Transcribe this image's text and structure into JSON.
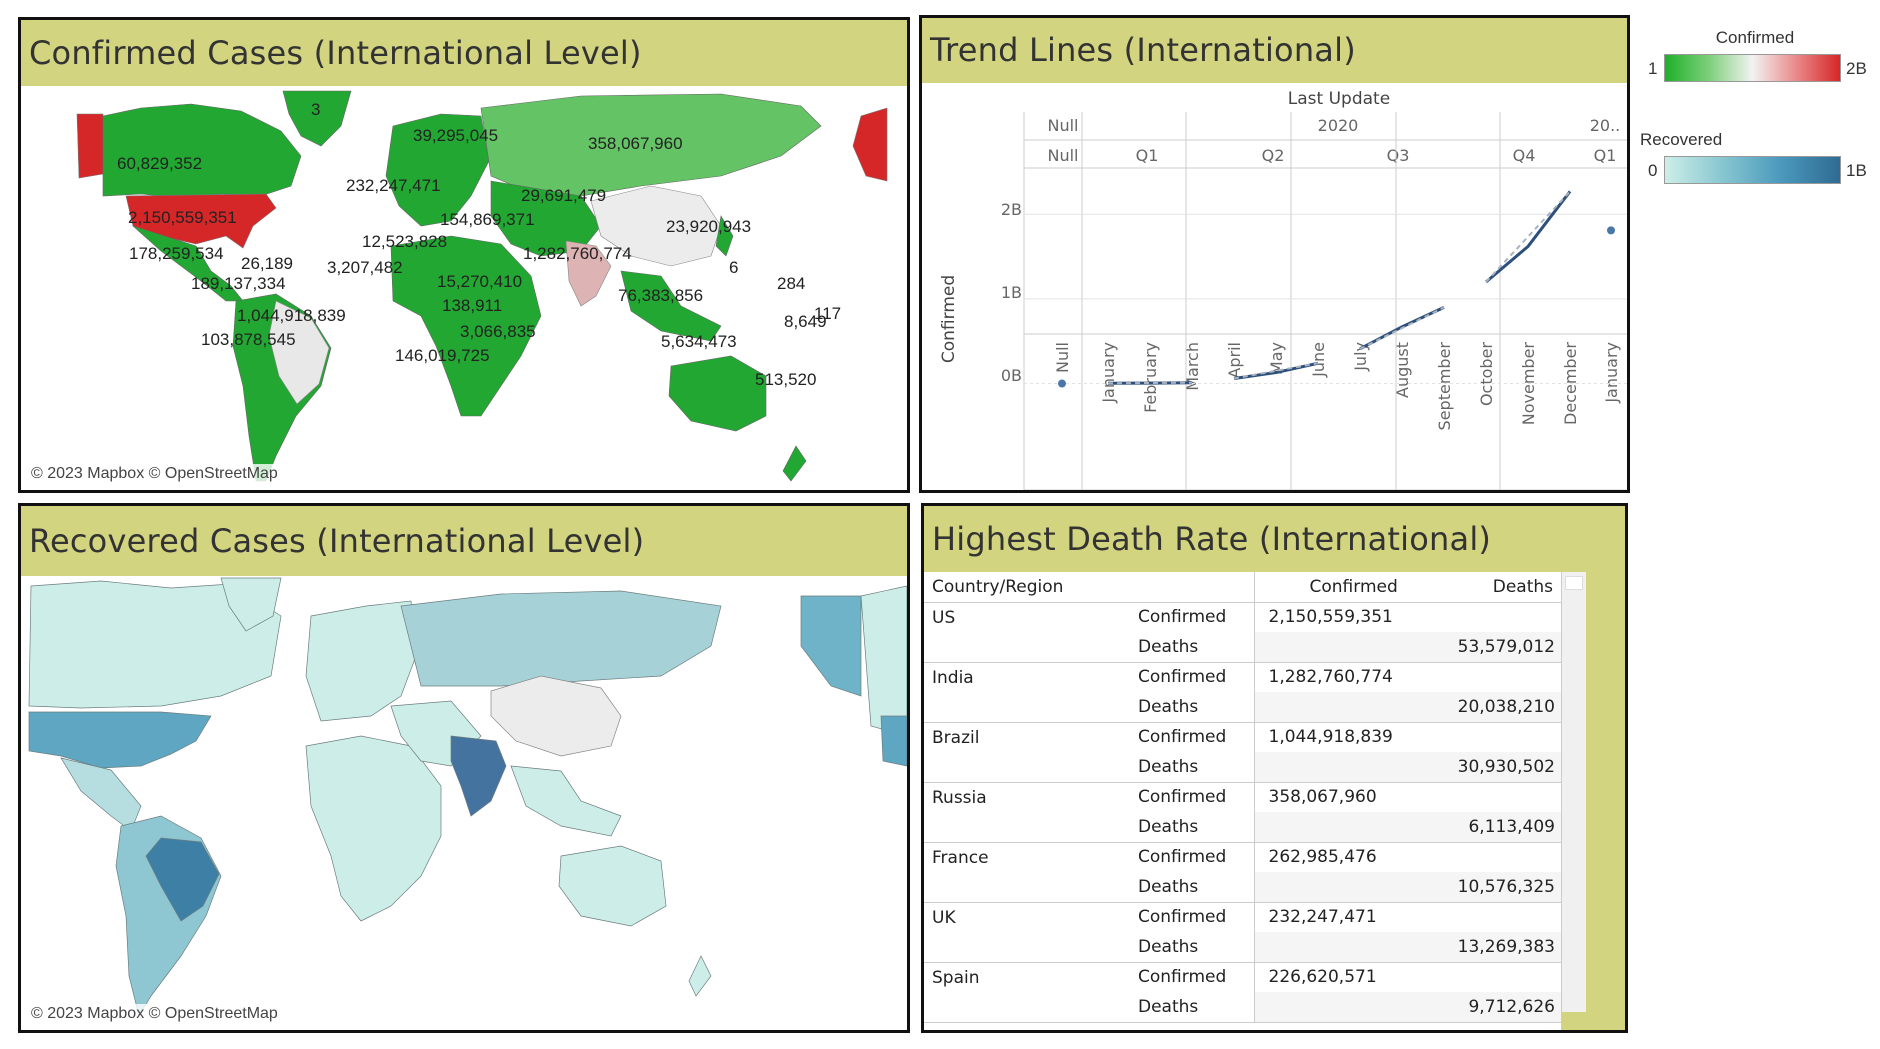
{
  "confirmed_map": {
    "title": "Confirmed Cases (International Level)",
    "credit": "© 2023 Mapbox © OpenStreetMap",
    "labels": [
      "3",
      "39,295,045",
      "358,067,960",
      "60,829,352",
      "232,247,471",
      "29,691,479",
      "2,150,559,351",
      "154,869,371",
      "23,920,943",
      "12,523,828",
      "1,282,760,774",
      "178,259,534",
      "26,189",
      "3,207,482",
      "6",
      "189,137,334",
      "15,270,410",
      "284",
      "76,383,856",
      "138,911",
      "1,044,918,839",
      "117",
      "8,649",
      "103,878,545",
      "3,066,835",
      "5,634,473",
      "146,019,725",
      "513,520"
    ]
  },
  "trend": {
    "title": "Trend Lines (International)",
    "column_header": "Last Update",
    "years": [
      "Null",
      "2020",
      "20.."
    ],
    "quarters": [
      "Null",
      "Q1",
      "Q2",
      "Q3",
      "Q4",
      "Q1"
    ],
    "months": [
      "Null",
      "January",
      "February",
      "March",
      "April",
      "May",
      "June",
      "July",
      "August",
      "September",
      "October",
      "November",
      "December",
      "January"
    ],
    "ylabel": "Confirmed",
    "yticks": [
      "2B",
      "1B",
      "0B"
    ]
  },
  "chart_data": {
    "type": "line",
    "title": "Trend Lines (International)",
    "xlabel": "Last Update",
    "ylabel": "Confirmed",
    "x": [
      "Null",
      "January",
      "February",
      "March",
      "April",
      "May",
      "June",
      "July",
      "August",
      "September",
      "October",
      "November",
      "December",
      "January"
    ],
    "series": [
      {
        "values": [
          0,
          0.003,
          0.005,
          0.01,
          0.06,
          0.13,
          0.24,
          0.41,
          0.67,
          0.9,
          1.2,
          1.62,
          2.27,
          1.81
        ]
      }
    ],
    "ylim": [
      -0.1,
      2.5
    ]
  },
  "legend": {
    "confirmed": {
      "title": "Confirmed",
      "min": "1",
      "max": "2B",
      "colors": [
        "#1fb02a",
        "#f2f2f2",
        "#d62728"
      ]
    },
    "recovered": {
      "title": "Recovered",
      "min": "0",
      "max": "1B",
      "colors": [
        "#cdeee8",
        "#2f6b92"
      ]
    }
  },
  "recovered_map": {
    "title": "Recovered Cases (International Level)",
    "credit": "© 2023 Mapbox © OpenStreetMap"
  },
  "death": {
    "title": "Highest Death Rate (International)",
    "headers": {
      "country": "Country/Region",
      "confirmed": "Confirmed",
      "deaths": "Deaths"
    },
    "rows": [
      {
        "country": "US",
        "measure_confirmed": "Confirmed",
        "confirmed": "2,150,559,351",
        "measure_deaths": "Deaths",
        "deaths": "53,579,012"
      },
      {
        "country": "India",
        "measure_confirmed": "Confirmed",
        "confirmed": "1,282,760,774",
        "measure_deaths": "Deaths",
        "deaths": "20,038,210"
      },
      {
        "country": "Brazil",
        "measure_confirmed": "Confirmed",
        "confirmed": "1,044,918,839",
        "measure_deaths": "Deaths",
        "deaths": "30,930,502"
      },
      {
        "country": "Russia",
        "measure_confirmed": "Confirmed",
        "confirmed": "358,067,960",
        "measure_deaths": "Deaths",
        "deaths": "6,113,409"
      },
      {
        "country": "France",
        "measure_confirmed": "Confirmed",
        "confirmed": "262,985,476",
        "measure_deaths": "Deaths",
        "deaths": "10,576,325"
      },
      {
        "country": "UK",
        "measure_confirmed": "Confirmed",
        "confirmed": "232,247,471",
        "measure_deaths": "Deaths",
        "deaths": "13,269,383"
      },
      {
        "country": "Spain",
        "measure_confirmed": "Confirmed",
        "confirmed": "226,620,571",
        "measure_deaths": "Deaths",
        "deaths": "9,712,626"
      }
    ]
  }
}
